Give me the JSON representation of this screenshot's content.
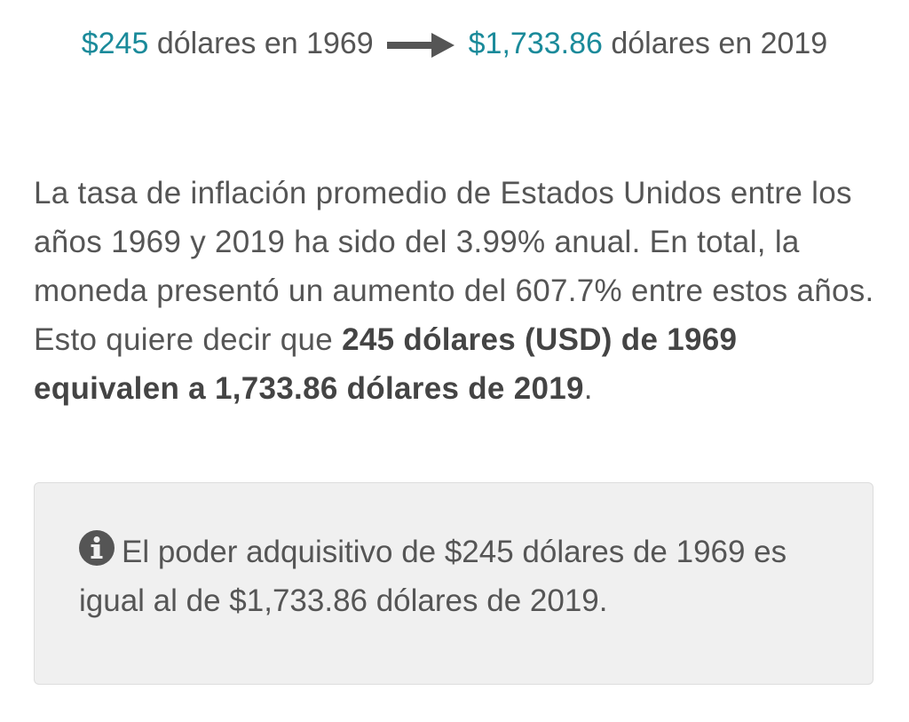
{
  "header": {
    "from_amount": "$245",
    "from_text": "dólares en 1969",
    "to_amount": "$1,733.86",
    "to_text": "dólares en 2019"
  },
  "paragraph": {
    "text": "La tasa de inflación promedio de Estados Unidos entre los años 1969 y 2019 ha sido del 3.99% anual. En total, la moneda presentó un aumento del 607.7% entre estos años. Esto quiere decir que",
    "bold": "245 dólares (USD) de 1969 equivalen a 1,733.86 dólares de 2019",
    "end": "."
  },
  "info_box": {
    "text": "El poder adquisitivo de $245 dólares de 1969 es igual al de $1,733.86 dólares de 2019."
  }
}
